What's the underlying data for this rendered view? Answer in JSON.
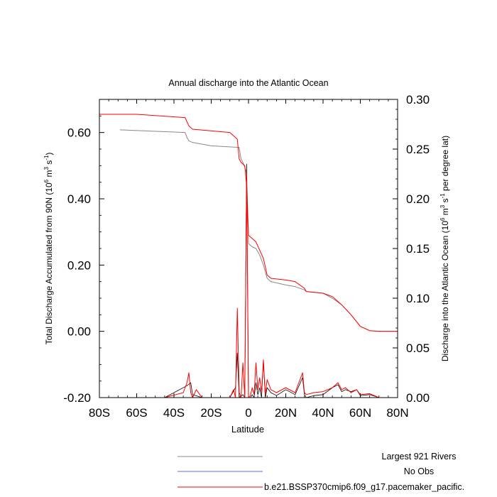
{
  "chart_data": {
    "type": "line",
    "title": "Annual discharge into the Atlantic Ocean",
    "xlabel": "Latitude",
    "ylabel_left": "Total Discharge Accumulated from 90N (10",
    "ylabel_left_sup1": "6",
    "ylabel_left_mid": " m",
    "ylabel_left_sup2": "3",
    "ylabel_left_mid2": " s",
    "ylabel_left_sup3": "-1",
    "ylabel_left_end": ")",
    "ylabel_right": "Discharge into the Atlantic Ocean (10",
    "ylabel_right_sup1": "6",
    "ylabel_right_mid": " m",
    "ylabel_right_sup2": "3",
    "ylabel_right_mid2": " s",
    "ylabel_right_sup3": "-1",
    "ylabel_right_end": " per degree lat)",
    "xlim": [
      -80,
      80
    ],
    "ylim_left": [
      -0.2,
      0.7
    ],
    "ylim_right": [
      0.0,
      0.3
    ],
    "x_ticks": [
      -80,
      -60,
      -40,
      -20,
      0,
      20,
      40,
      60,
      80
    ],
    "x_tick_labels": [
      "80S",
      "60S",
      "40S",
      "20S",
      "0",
      "20N",
      "40N",
      "60N",
      "80N"
    ],
    "y_left_ticks": [
      -0.2,
      0.0,
      0.2,
      0.4,
      0.6
    ],
    "y_left_tick_labels": [
      "-0.20",
      "0.00",
      "0.20",
      "0.40",
      "0.60"
    ],
    "y_right_ticks": [
      0.0,
      0.05,
      0.1,
      0.15,
      0.2,
      0.25,
      0.3
    ],
    "y_right_tick_labels": [
      "0.00",
      "0.05",
      "0.10",
      "0.15",
      "0.20",
      "0.25",
      "0.30"
    ],
    "legend_position": "bottom",
    "series": [
      {
        "name": "Largest 921 Rivers",
        "color": "#888888",
        "axis": "left",
        "x": [
          -69,
          -34,
          -33,
          -32,
          -30,
          -20,
          -5,
          -4,
          -3,
          -1,
          0,
          1,
          2,
          4,
          6,
          8,
          10,
          12,
          20,
          25,
          30,
          31,
          35,
          40,
          45,
          50,
          55,
          60,
          65,
          70,
          80
        ],
        "y": [
          0.608,
          0.6,
          0.585,
          0.575,
          0.57,
          0.56,
          0.555,
          0.52,
          0.51,
          0.48,
          0.265,
          0.26,
          0.255,
          0.25,
          0.23,
          0.2,
          0.16,
          0.15,
          0.14,
          0.135,
          0.125,
          0.12,
          0.118,
          0.115,
          0.1,
          0.08,
          0.05,
          0.015,
          0.002,
          0.0,
          0.0
        ]
      },
      {
        "name": "No Obs",
        "color": "#6666ff",
        "axis": "left",
        "x": [],
        "y": []
      },
      {
        "name": "b.e21.BSSP370cmip6.f09_g17.pacemaker_pacific.",
        "color": "#ff0000",
        "axis": "left",
        "x": [
          -80,
          -60,
          -34,
          -32,
          -30,
          -10,
          -6,
          -5,
          -4,
          -2,
          -1,
          0,
          1,
          2,
          4,
          8,
          10,
          12,
          20,
          25,
          30,
          31,
          35,
          40,
          45,
          50,
          55,
          60,
          65,
          70,
          80
        ],
        "y": [
          0.655,
          0.655,
          0.645,
          0.62,
          0.61,
          0.6,
          0.58,
          0.52,
          0.51,
          0.5,
          0.44,
          0.29,
          0.285,
          0.28,
          0.27,
          0.22,
          0.17,
          0.16,
          0.155,
          0.15,
          0.13,
          0.12,
          0.118,
          0.115,
          0.105,
          0.08,
          0.05,
          0.015,
          0.002,
          0.0,
          0.0
        ]
      },
      {
        "name": "",
        "color": "#000000",
        "axis": "right",
        "x": [
          -80,
          -60,
          -45,
          -33,
          -31,
          -30,
          -25,
          -10,
          -7,
          -6,
          -5,
          -3,
          -2,
          -1,
          0,
          1,
          2,
          3,
          4,
          5,
          6,
          7,
          8,
          9,
          10,
          12,
          15,
          20,
          25,
          29,
          30,
          31,
          35,
          40,
          45,
          48,
          50,
          52,
          55,
          58,
          60,
          65,
          70,
          80
        ],
        "y": [
          0.0,
          0.0,
          0.0,
          0.012,
          0.015,
          0.003,
          0.0,
          0.0,
          0.01,
          0.045,
          0.0,
          0.003,
          0.0,
          0.235,
          0.0,
          0.0,
          0.003,
          0.0,
          0.015,
          0.003,
          0.01,
          0.0,
          0.037,
          0.0,
          0.01,
          0.005,
          0.002,
          0.008,
          0.003,
          0.02,
          0.003,
          0.0,
          0.002,
          0.003,
          0.01,
          0.013,
          0.006,
          0.008,
          0.006,
          0.008,
          0.002,
          0.003,
          0.0,
          0.0
        ]
      },
      {
        "name": "",
        "color": "#ff0000",
        "axis": "right",
        "x": [
          -80,
          -60,
          -45,
          -35,
          -33,
          -32,
          -31,
          -30,
          -28,
          -25,
          -10,
          -8,
          -7,
          -6,
          -5,
          -4,
          -3,
          -2,
          -1,
          0,
          1,
          2,
          3,
          4,
          5,
          6,
          7,
          8,
          9,
          10,
          12,
          15,
          20,
          25,
          29,
          30,
          31,
          35,
          40,
          45,
          48,
          50,
          52,
          55,
          58,
          60,
          65,
          70,
          80
        ],
        "y": [
          0.0,
          0.0,
          0.0,
          0.005,
          0.015,
          0.025,
          0.005,
          0.0,
          0.008,
          0.0,
          0.0,
          0.008,
          0.0,
          0.09,
          0.005,
          0.0,
          0.035,
          0.0,
          0.225,
          0.0,
          0.002,
          0.01,
          0.003,
          0.035,
          0.008,
          0.02,
          0.005,
          0.038,
          0.003,
          0.018,
          0.008,
          0.005,
          0.01,
          0.005,
          0.025,
          0.005,
          0.003,
          0.005,
          0.006,
          0.01,
          0.015,
          0.008,
          0.01,
          0.005,
          0.008,
          0.003,
          0.004,
          0.0,
          0.0
        ]
      }
    ],
    "legend": [
      {
        "label": "Largest 921 Rivers",
        "color": "#888888"
      },
      {
        "label": "No Obs",
        "color": "#6666ff"
      },
      {
        "label": "b.e21.BSSP370cmip6.f09_g17.pacemaker_pacific.",
        "color": "#ff0000"
      }
    ]
  }
}
